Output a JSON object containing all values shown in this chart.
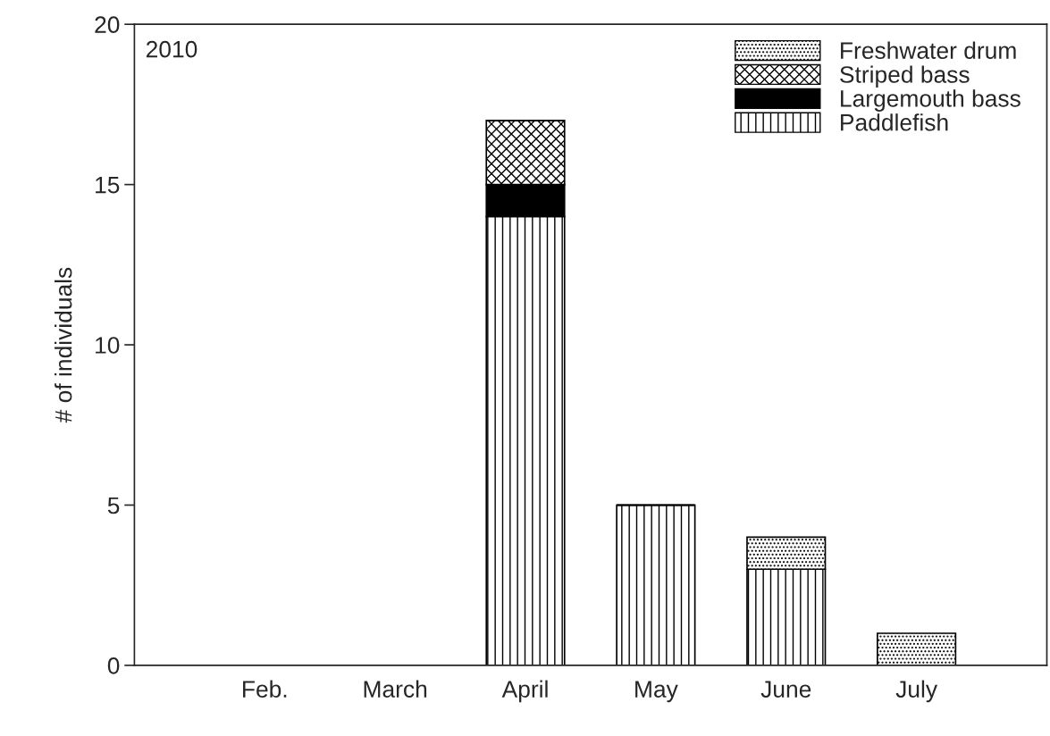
{
  "chart_data": {
    "type": "bar",
    "stacked": true,
    "ylabel": "# of individuals",
    "categories": [
      "Feb.",
      "March",
      "April",
      "May",
      "June",
      "July"
    ],
    "series": [
      {
        "name": "Paddlefish",
        "color": "#000000",
        "values": [
          0,
          0,
          14,
          5,
          3,
          0
        ]
      },
      {
        "name": "Largemouth bass",
        "color": "#000000",
        "values": [
          0,
          0,
          1,
          0,
          0,
          0
        ]
      },
      {
        "name": "Striped bass",
        "color": "#000000",
        "values": [
          0,
          0,
          2,
          0,
          0,
          0
        ]
      },
      {
        "name": "Freshwater drum",
        "color": "#000000",
        "values": [
          0,
          0,
          0,
          0,
          1,
          1
        ]
      }
    ],
    "ylim": [
      0,
      20
    ],
    "yticks": [
      0,
      5,
      10,
      15,
      20
    ],
    "grid": false,
    "legend": "top right",
    "annotations": [
      "2010"
    ]
  }
}
